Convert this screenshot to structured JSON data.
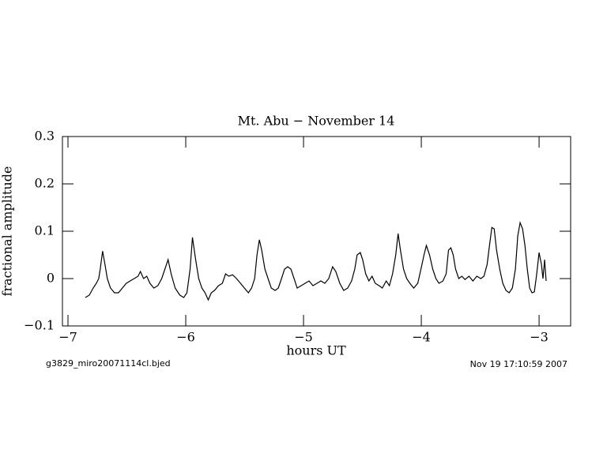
{
  "chart_data": {
    "type": "line",
    "title": "Mt. Abu − November 14",
    "xlabel": "hours UT",
    "ylabel": "fractional amplitude",
    "footer_left": "g3829_miro20071114cl.bjed",
    "footer_right": "Nov 19 17:10:59 2007",
    "xlim": [
      -7.047,
      -2.732
    ],
    "ylim": [
      -0.1,
      0.3
    ],
    "xticks": [
      {
        "value": -7,
        "label": "−7"
      },
      {
        "value": -6,
        "label": "−6"
      },
      {
        "value": -5,
        "label": "−5"
      },
      {
        "value": -4,
        "label": "−4"
      },
      {
        "value": -3,
        "label": "−3"
      }
    ],
    "yticks": [
      {
        "value": -0.1,
        "label": "−0.1"
      },
      0,
      0.1,
      0.2,
      0.3
    ],
    "color": "#000000",
    "x": [
      -6.853,
      -6.819,
      -6.786,
      -6.759,
      -6.739,
      -6.726,
      -6.706,
      -6.686,
      -6.666,
      -6.639,
      -6.605,
      -6.572,
      -6.538,
      -6.505,
      -6.472,
      -6.438,
      -6.405,
      -6.385,
      -6.358,
      -6.331,
      -6.304,
      -6.271,
      -6.237,
      -6.204,
      -6.177,
      -6.15,
      -6.124,
      -6.09,
      -6.05,
      -6.017,
      -5.99,
      -5.963,
      -5.943,
      -5.916,
      -5.89,
      -5.863,
      -5.836,
      -5.809,
      -5.783,
      -5.756,
      -5.722,
      -5.689,
      -5.662,
      -5.635,
      -5.602,
      -5.569,
      -5.535,
      -5.502,
      -5.468,
      -5.441,
      -5.415,
      -5.395,
      -5.375,
      -5.355,
      -5.328,
      -5.301,
      -5.274,
      -5.241,
      -5.214,
      -5.187,
      -5.161,
      -5.134,
      -5.107,
      -5.08,
      -5.054,
      -5.02,
      -4.987,
      -4.953,
      -4.92,
      -4.886,
      -4.853,
      -4.819,
      -4.786,
      -4.753,
      -4.726,
      -4.692,
      -4.659,
      -4.625,
      -4.592,
      -4.565,
      -4.545,
      -4.518,
      -4.498,
      -4.472,
      -4.445,
      -4.418,
      -4.391,
      -4.358,
      -4.331,
      -4.298,
      -4.271,
      -4.244,
      -4.217,
      -4.197,
      -4.177,
      -4.151,
      -4.124,
      -4.097,
      -4.064,
      -4.03,
      -4.003,
      -3.977,
      -3.957,
      -3.93,
      -3.903,
      -3.876,
      -3.85,
      -3.816,
      -3.789,
      -3.769,
      -3.749,
      -3.729,
      -3.709,
      -3.682,
      -3.656,
      -3.629,
      -3.595,
      -3.562,
      -3.528,
      -3.495,
      -3.468,
      -3.441,
      -3.421,
      -3.401,
      -3.381,
      -3.361,
      -3.334,
      -3.308,
      -3.281,
      -3.254,
      -3.227,
      -3.201,
      -3.181,
      -3.161,
      -3.14,
      -3.12,
      -3.1,
      -3.08,
      -3.06,
      -3.04,
      -3.02,
      -3.0,
      -2.98,
      -2.967,
      -2.953,
      -2.94
    ],
    "values": [
      -0.04,
      -0.035,
      -0.02,
      -0.01,
      0.0,
      0.02,
      0.058,
      0.03,
      0.0,
      -0.02,
      -0.03,
      -0.03,
      -0.02,
      -0.01,
      -0.005,
      0.0,
      0.005,
      0.015,
      0.0,
      0.005,
      -0.01,
      -0.02,
      -0.015,
      0.0,
      0.02,
      0.04,
      0.01,
      -0.02,
      -0.035,
      -0.04,
      -0.03,
      0.02,
      0.087,
      0.04,
      0.0,
      -0.02,
      -0.03,
      -0.045,
      -0.03,
      -0.025,
      -0.015,
      -0.01,
      0.01,
      0.005,
      0.008,
      0.0,
      -0.01,
      -0.02,
      -0.03,
      -0.02,
      0.0,
      0.05,
      0.082,
      0.06,
      0.02,
      0.0,
      -0.02,
      -0.025,
      -0.02,
      0.0,
      0.02,
      0.025,
      0.02,
      0.0,
      -0.02,
      -0.015,
      -0.01,
      -0.005,
      -0.015,
      -0.01,
      -0.005,
      -0.01,
      0.0,
      0.025,
      0.015,
      -0.01,
      -0.025,
      -0.02,
      -0.005,
      0.02,
      0.05,
      0.055,
      0.04,
      0.01,
      -0.005,
      0.005,
      -0.01,
      -0.015,
      -0.02,
      -0.005,
      -0.015,
      0.01,
      0.05,
      0.095,
      0.06,
      0.02,
      0.0,
      -0.01,
      -0.02,
      -0.01,
      0.02,
      0.05,
      0.07,
      0.05,
      0.02,
      0.0,
      -0.01,
      -0.005,
      0.01,
      0.06,
      0.065,
      0.05,
      0.02,
      0.0,
      0.005,
      -0.002,
      0.005,
      -0.005,
      0.005,
      0.0,
      0.005,
      0.03,
      0.07,
      0.108,
      0.105,
      0.06,
      0.02,
      -0.01,
      -0.025,
      -0.03,
      -0.02,
      0.02,
      0.09,
      0.118,
      0.105,
      0.07,
      0.02,
      -0.02,
      -0.03,
      -0.028,
      0.01,
      0.055,
      0.03,
      0.0,
      0.04,
      -0.005
    ]
  }
}
